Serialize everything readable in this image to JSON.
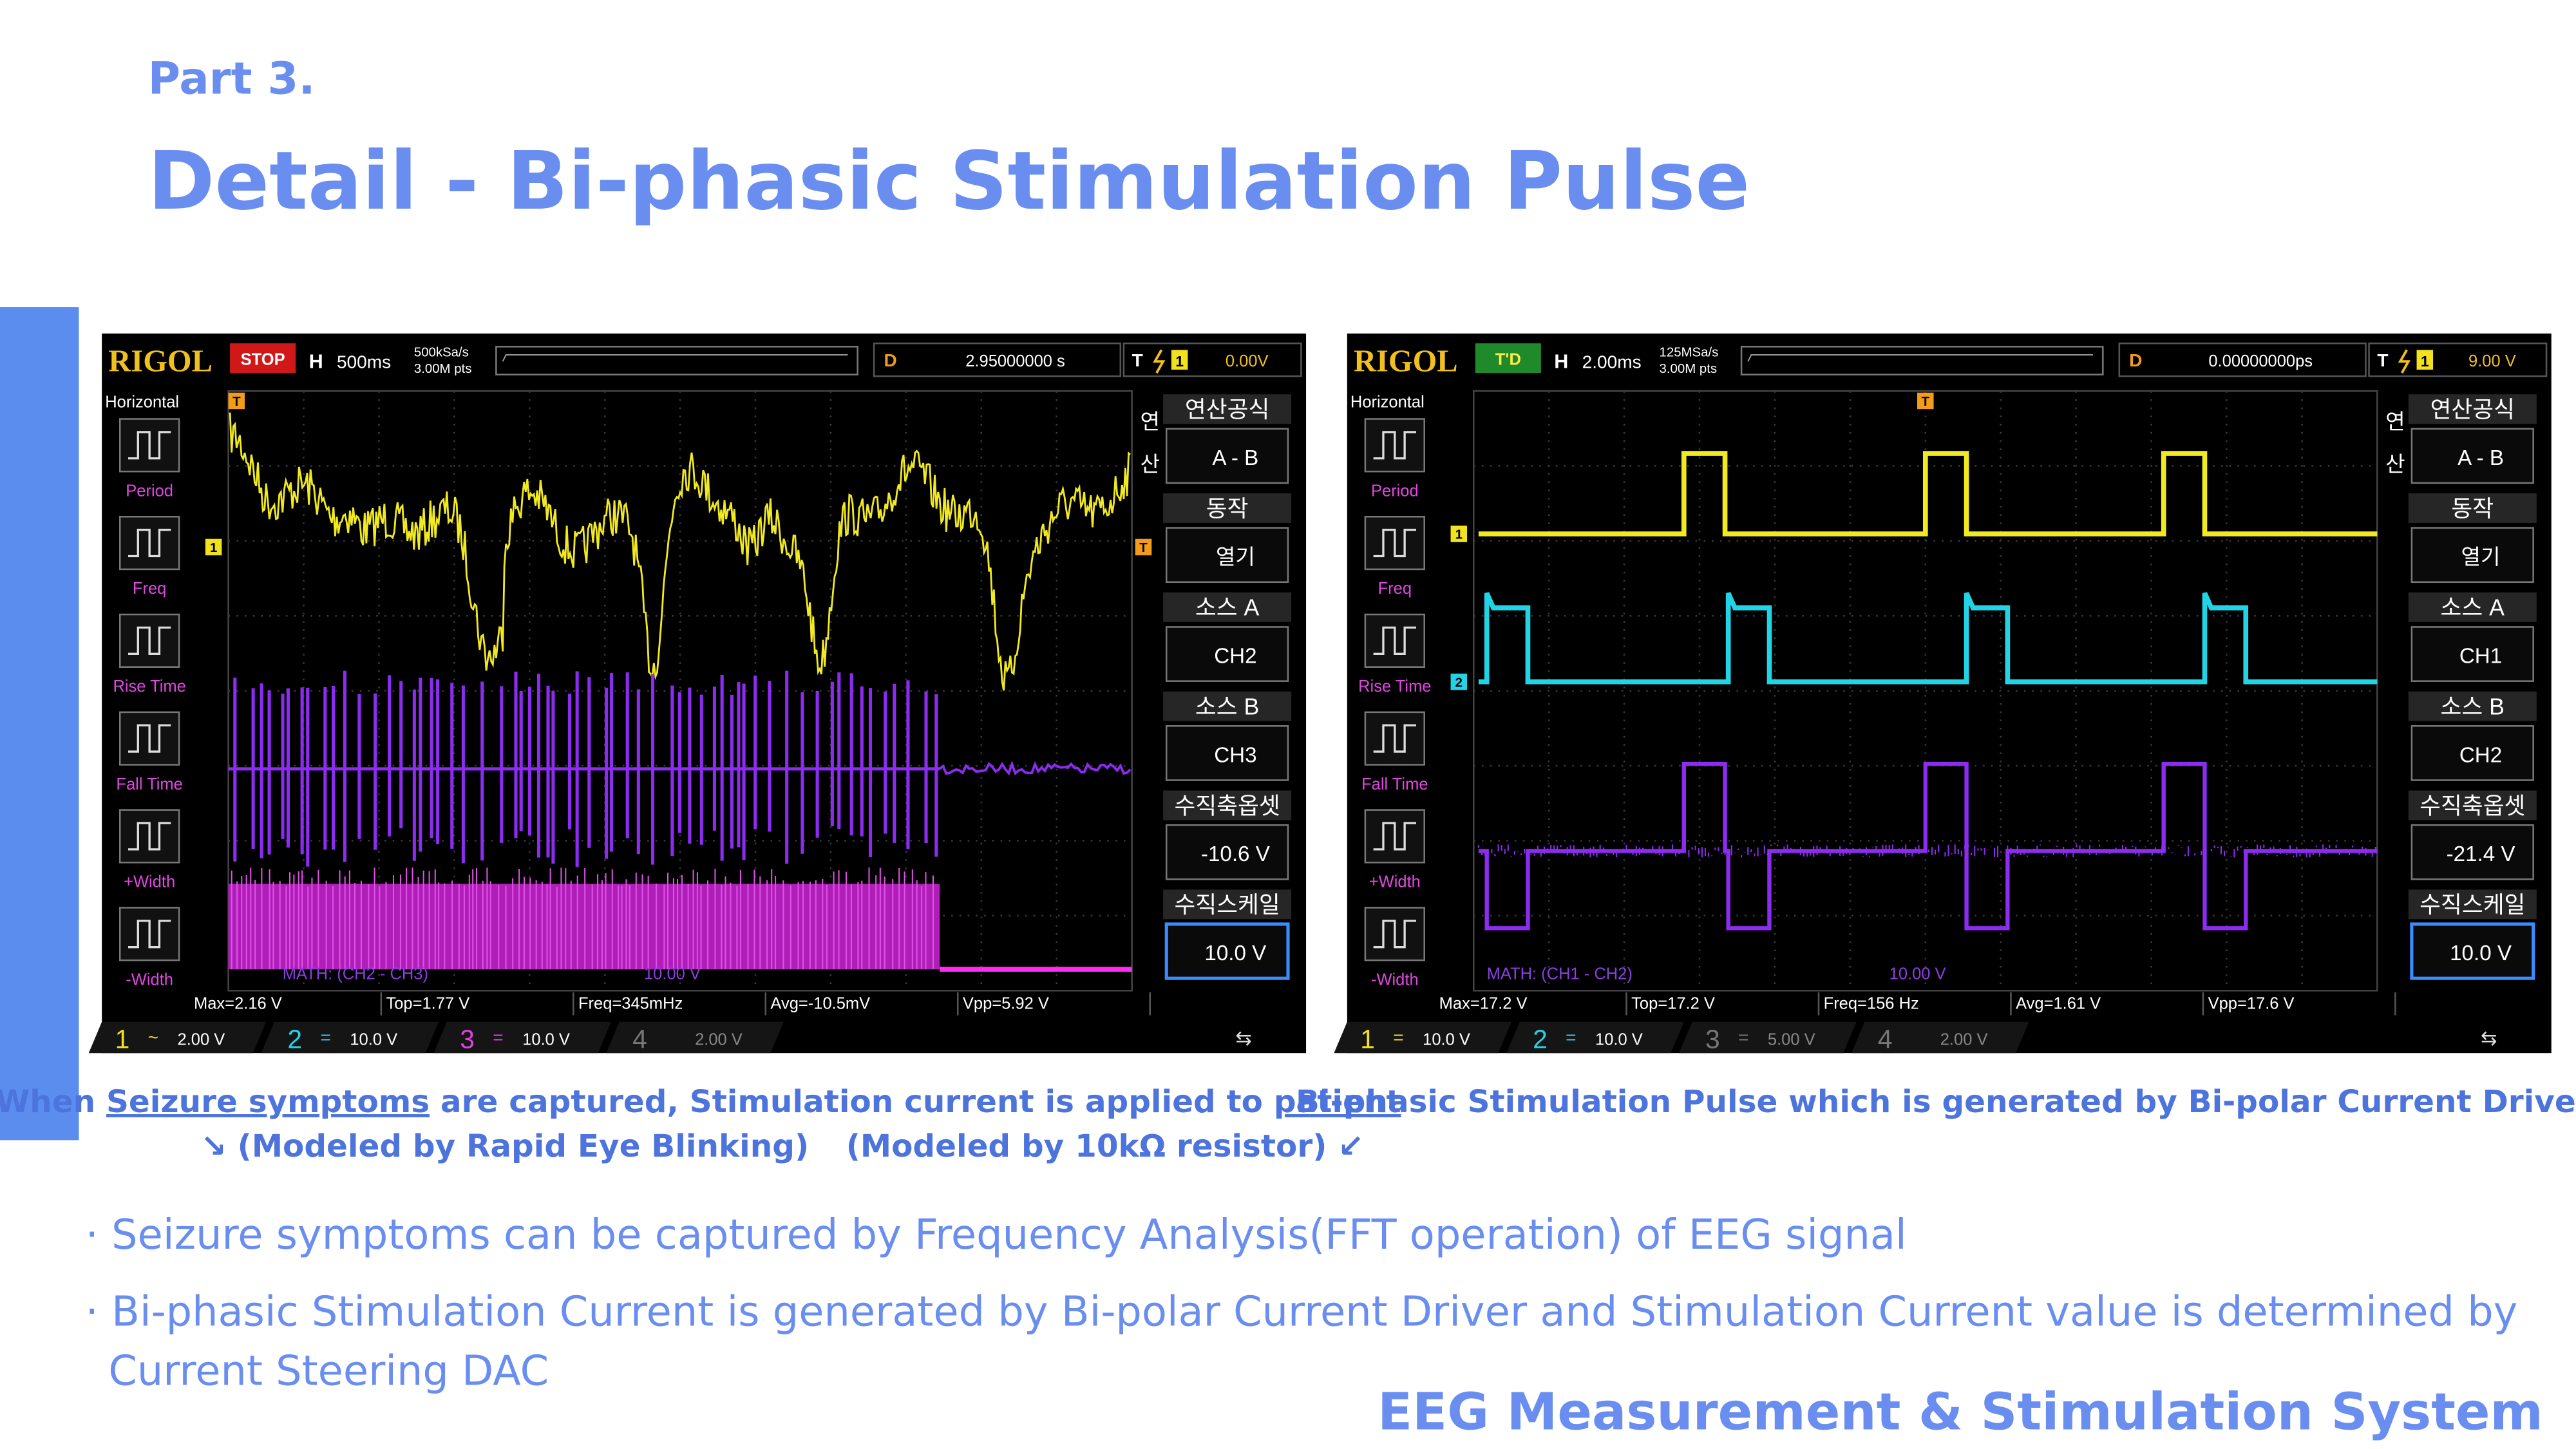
{
  "header": {
    "part": "Part 3.",
    "title": "Detail - Bi-phasic Stimulation Pulse"
  },
  "scopes": [
    {
      "brand": "RIGOL",
      "status": "STOP",
      "h": "H",
      "timebase": "500ms",
      "sample_rate": "500kSa/s",
      "memory": "3.00M pts",
      "delay_label": "D",
      "delay": "2.95000000 s",
      "trigger_label": "T",
      "trigger_source": "1",
      "trigger_level": "0.00V",
      "left_menu": {
        "title": "Horizontal",
        "items": [
          "Period",
          "Freq",
          "Rise Time",
          "Fall Time",
          "+Width",
          "-Width"
        ]
      },
      "math_side": [
        "연",
        "산"
      ],
      "math_menu": [
        {
          "label": "연산공식",
          "value": "A - B"
        },
        {
          "label": "동작",
          "value": "열기"
        },
        {
          "label": "소스 A",
          "value": "CH2"
        },
        {
          "label": "소스 B",
          "value": "CH3"
        },
        {
          "label": "수직축옵셋",
          "value": "-10.6 V"
        },
        {
          "label": "수직스케일",
          "value": "10.0 V"
        }
      ],
      "markers": [
        "T",
        "1",
        "T"
      ],
      "math_label": "MATH: (CH2 - CH3)",
      "math_scale": "10.00 V",
      "measurements": [
        "Max=2.16 V",
        "Top=1.77 V",
        "Freq=345mHz",
        "Avg=-10.5mV",
        "Vpp=5.92 V"
      ],
      "channels": [
        {
          "number": "1",
          "coupling": "~",
          "scale": "2.00 V"
        },
        {
          "number": "2",
          "coupling": "=",
          "scale": "10.0 V"
        },
        {
          "number": "3",
          "coupling": "=",
          "scale": "10.0 V"
        },
        {
          "number": "4",
          "scale": "2.00 V"
        }
      ]
    },
    {
      "brand": "RIGOL",
      "status": "T'D",
      "h": "H",
      "timebase": "2.00ms",
      "sample_rate": "125MSa/s",
      "memory": "3.00M pts",
      "delay_label": "D",
      "delay": "0.00000000ps",
      "trigger_label": "T",
      "trigger_source": "1",
      "trigger_level": "9.00 V",
      "left_menu": {
        "title": "Horizontal",
        "items": [
          "Period",
          "Freq",
          "Rise Time",
          "Fall Time",
          "+Width",
          "-Width"
        ]
      },
      "math_side": [
        "연",
        "산"
      ],
      "math_menu": [
        {
          "label": "연산공식",
          "value": "A - B"
        },
        {
          "label": "동작",
          "value": "열기"
        },
        {
          "label": "소스 A",
          "value": "CH1"
        },
        {
          "label": "소스 B",
          "value": "CH2"
        },
        {
          "label": "수직축옵셋",
          "value": "-21.4 V"
        },
        {
          "label": "수직스케일",
          "value": "10.0 V"
        }
      ],
      "markers": [
        "T",
        "1",
        "2"
      ],
      "math_label": "MATH: (CH1 - CH2)",
      "math_scale": "10.00 V",
      "measurements": [
        "Max=17.2 V",
        "Top=17.2 V",
        "Freq=156 Hz",
        "Avg=1.61 V",
        "Vpp=17.6 V"
      ],
      "channels": [
        {
          "number": "1",
          "coupling": "=",
          "scale": "10.0 V"
        },
        {
          "number": "2",
          "coupling": "=",
          "scale": "10.0 V"
        },
        {
          "number": "3",
          "coupling": "=",
          "scale": "5.00 V"
        },
        {
          "number": "4",
          "scale": "2.00 V"
        }
      ]
    }
  ],
  "captions": {
    "left": [
      "When ",
      "Seizure symptoms",
      " are captured, Stimulation current is applied to ",
      "patient"
    ],
    "left_sub": [
      "↘ (Modeled by Rapid Eye Blinking)",
      "(Modeled by 10kΩ resistor) ↙"
    ],
    "right": "Bi-phasic Stimulation Pulse which is generated by Bi-polar Current Driver"
  },
  "notes": [
    [
      "· Seizure symptoms can be captured by Frequency Analysis(FFT operation) of EEG signal"
    ],
    [
      "· Bi-phasic Stimulation Current is generated by Bi-polar Current Driver and Stimulation Current value is determined by",
      "Current Steering DAC"
    ]
  ],
  "footer": "EEG Measurement & Stimulation System"
}
